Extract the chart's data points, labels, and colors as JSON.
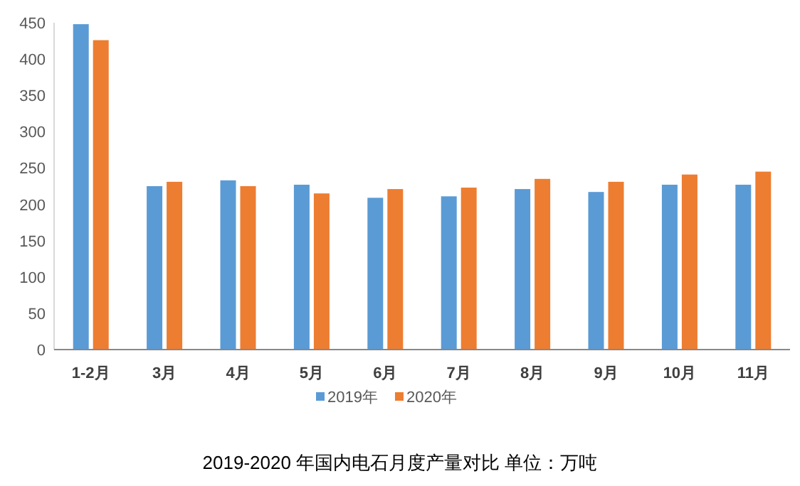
{
  "chart_data": {
    "type": "bar",
    "title": "2019-2020 年国内电石月度产量对比  单位：万吨",
    "categories": [
      "1-2月",
      "3月",
      "4月",
      "5月",
      "6月",
      "7月",
      "8月",
      "9月",
      "10月",
      "11月"
    ],
    "series": [
      {
        "name": "2019年",
        "color": "#5b9bd5",
        "values": [
          448,
          225,
          233,
          227,
          209,
          211,
          221,
          217,
          227,
          227
        ]
      },
      {
        "name": "2020年",
        "color": "#ed7d31",
        "values": [
          426,
          231,
          225,
          215,
          221,
          223,
          235,
          231,
          241,
          245
        ]
      }
    ],
    "ylim": [
      0,
      450
    ],
    "yticks": [
      0,
      50,
      100,
      150,
      200,
      250,
      300,
      350,
      400,
      450
    ],
    "grid": false,
    "legend": "bottom"
  }
}
